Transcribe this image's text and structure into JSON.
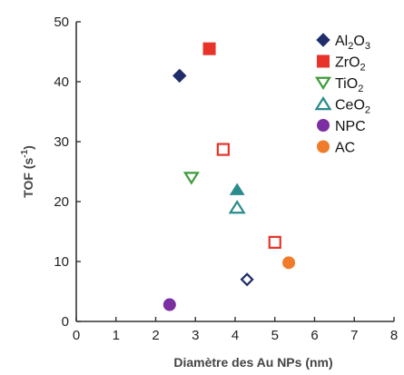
{
  "chart_data": {
    "type": "scatter",
    "title": "",
    "xlabel": "Diamètre des Au NPs (nm)",
    "ylabel_parts": {
      "main": "TOF (s",
      "sup": "-1",
      "end": ")"
    },
    "xlim": [
      0,
      8
    ],
    "ylim": [
      0,
      50
    ],
    "x_ticks": [
      0,
      1,
      2,
      3,
      4,
      5,
      6,
      7,
      8
    ],
    "y_ticks": [
      0,
      10,
      20,
      30,
      40,
      50
    ],
    "grid": false,
    "legend_position": "top-right",
    "series": [
      {
        "name": "Al2O3",
        "label": {
          "main": "Al",
          "sub1": "2",
          "mid": "O",
          "sub2": "3"
        },
        "marker": "diamond",
        "color": "#1f2d6b",
        "points": [
          {
            "x": 2.6,
            "y": 41,
            "filled": true
          },
          {
            "x": 4.3,
            "y": 7,
            "filled": false
          }
        ]
      },
      {
        "name": "ZrO2",
        "label": {
          "main": "ZrO",
          "sub1": "2"
        },
        "marker": "square",
        "color": "#e8332a",
        "points": [
          {
            "x": 3.35,
            "y": 45.5,
            "filled": true
          },
          {
            "x": 3.7,
            "y": 28.7,
            "filled": false
          },
          {
            "x": 5.0,
            "y": 13.2,
            "filled": false
          }
        ]
      },
      {
        "name": "TiO2",
        "label": {
          "main": "TiO",
          "sub1": "2"
        },
        "marker": "triangle-down",
        "color": "#3e9b3c",
        "points": [
          {
            "x": 2.9,
            "y": 24,
            "filled": false
          }
        ]
      },
      {
        "name": "CeO2",
        "label": {
          "main": "CeO",
          "sub1": "2"
        },
        "marker": "triangle-up",
        "color": "#2a8a8c",
        "points": [
          {
            "x": 4.05,
            "y": 22,
            "filled": true
          },
          {
            "x": 4.05,
            "y": 19,
            "filled": false
          }
        ]
      },
      {
        "name": "NPC",
        "label": {
          "main": "NPC"
        },
        "marker": "circle",
        "color": "#7b2fa0",
        "points": [
          {
            "x": 2.35,
            "y": 2.8,
            "filled": true
          }
        ]
      },
      {
        "name": "AC",
        "label": {
          "main": "AC"
        },
        "marker": "circle",
        "color": "#f07b2a",
        "points": [
          {
            "x": 5.35,
            "y": 9.8,
            "filled": true
          }
        ]
      }
    ]
  }
}
